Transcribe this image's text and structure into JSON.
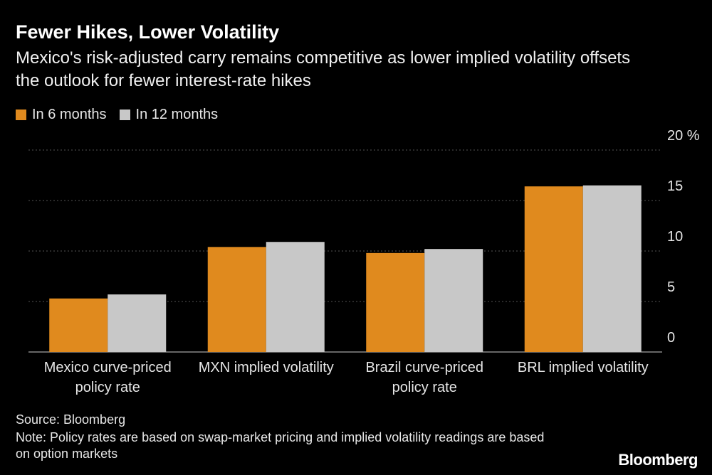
{
  "title": "Fewer Hikes, Lower Volatility",
  "subtitle": "Mexico's risk-adjusted carry remains competitive as lower implied volatility offsets the outlook for fewer interest-rate hikes",
  "colors": {
    "series_6m": "#e08a1e",
    "series_12m": "#c8c8c8",
    "background": "#000000",
    "grid": "#555555"
  },
  "chart_data": {
    "type": "bar",
    "categories": [
      [
        "Mexico curve-priced",
        "policy rate"
      ],
      [
        "MXN implied volatility"
      ],
      [
        "Brazil curve-priced",
        "policy rate"
      ],
      [
        "BRL implied volatility"
      ]
    ],
    "series": [
      {
        "name": "In 6 months",
        "values": [
          5.3,
          10.4,
          9.8,
          16.4
        ]
      },
      {
        "name": "In 12 months",
        "values": [
          5.7,
          10.9,
          10.2,
          16.5
        ]
      }
    ],
    "ylim": [
      0,
      20
    ],
    "yticks": [
      0,
      5,
      10,
      15,
      20
    ],
    "ytick_labels": [
      "0",
      "5",
      "10",
      "15",
      "20 %"
    ],
    "grid": true,
    "axis_side": "right"
  },
  "source": "Source: Bloomberg",
  "note": "Note: Policy rates are based on swap-market pricing and implied volatility readings are based on option markets",
  "logo": "Bloomberg"
}
